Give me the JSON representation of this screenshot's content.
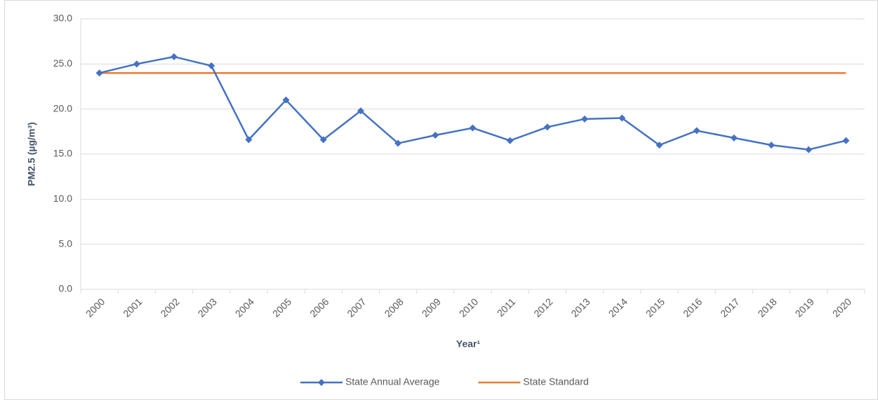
{
  "chart_data": {
    "type": "line",
    "y_label": "PM2.5 (µg/m³)",
    "x_label": "Year¹",
    "categories": [
      "2000",
      "2001",
      "2002",
      "2003",
      "2004",
      "2005",
      "2006",
      "2007",
      "2008",
      "2009",
      "2010",
      "2011",
      "2012",
      "2013",
      "2014",
      "2015",
      "2016",
      "2017",
      "2018",
      "2019",
      "2020"
    ],
    "series": [
      {
        "name": "State Annual Average",
        "color": "#4472c4",
        "marker": "diamond",
        "values": [
          24.0,
          25.0,
          25.8,
          24.8,
          16.6,
          21.0,
          16.6,
          19.8,
          16.2,
          17.1,
          17.9,
          16.5,
          18.0,
          18.9,
          19.0,
          16.0,
          17.6,
          16.8,
          16.0,
          15.5,
          16.5
        ]
      },
      {
        "name": "State Standard",
        "color": "#ed7d31",
        "values": [
          24,
          24,
          24,
          24,
          24,
          24,
          24,
          24,
          24,
          24,
          24,
          24,
          24,
          24,
          24,
          24,
          24,
          24,
          24,
          24,
          24
        ]
      }
    ],
    "ylim": [
      0,
      30
    ],
    "yticks": [
      {
        "value": 0,
        "label": "0.0"
      },
      {
        "value": 5,
        "label": "5.0"
      },
      {
        "value": 10,
        "label": "10.0"
      },
      {
        "value": 15,
        "label": "15.0"
      },
      {
        "value": 20,
        "label": "20.0"
      },
      {
        "value": 25,
        "label": "25.0"
      },
      {
        "value": 30,
        "label": "30.0"
      }
    ],
    "grid": true,
    "legend": "bottom"
  }
}
